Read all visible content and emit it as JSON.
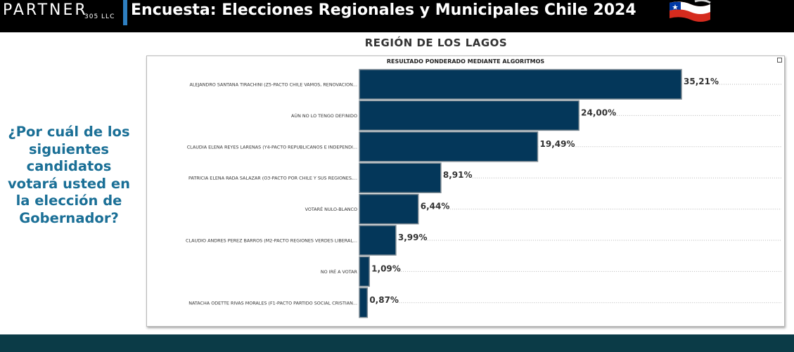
{
  "header": {
    "logo_text": "PARTNER",
    "logo_sub": "305 LLC",
    "title": "Encuesta: Elecciones Regionales y Municipales Chile 2024",
    "flag_icon": "chile-flag-icon"
  },
  "question": "¿Por cuál de los siguientes candidatos votará usted en la elección de Gobernador?",
  "colors": {
    "bar": "#04375a",
    "question": "#1a6f96",
    "header_bg": "#000000",
    "footer_bg": "#0b3b47"
  },
  "chart_data": {
    "type": "bar",
    "orientation": "horizontal",
    "title": "REGIÓN DE LOS LAGOS",
    "subtitle": "RESULTADO PONDERADO MEDIANTE ALGORITMOS",
    "categories": [
      "ALEJANDRO SANTANA TIRACHINI (Z5-PACTO CHILE VAMOS, RENOVACION...",
      "AÚN NO LO TENGO DEFINIDO",
      "CLAUDIA ELENA REYES LARENAS (Y4-PACTO REPUBLICANOS E INDEPENDI...",
      "PATRICIA ELENA RADA SALAZAR (O3-PACTO POR CHILE Y SUS REGIONES,...",
      "VOTARÉ NULO-BLANCO",
      "CLAUDIO ANDRES PEREZ BARROS (M2-PACTO REGIONES VERDES LIBERAL...",
      "NO IRÉ A VOTAR",
      "NATACHA ODETTE RIVAS MORALES (F1-PACTO PARTIDO SOCIAL CRISTIAN..."
    ],
    "values": [
      35.21,
      24.0,
      19.49,
      8.91,
      6.44,
      3.99,
      1.09,
      0.87
    ],
    "value_labels": [
      "35,21%",
      "24,00%",
      "19,49%",
      "8,91%",
      "6,44%",
      "3,99%",
      "1,09%",
      "0,87%"
    ],
    "xlim": [
      0,
      35.21
    ],
    "grid": "dotted-horizontal",
    "legend": "none"
  }
}
